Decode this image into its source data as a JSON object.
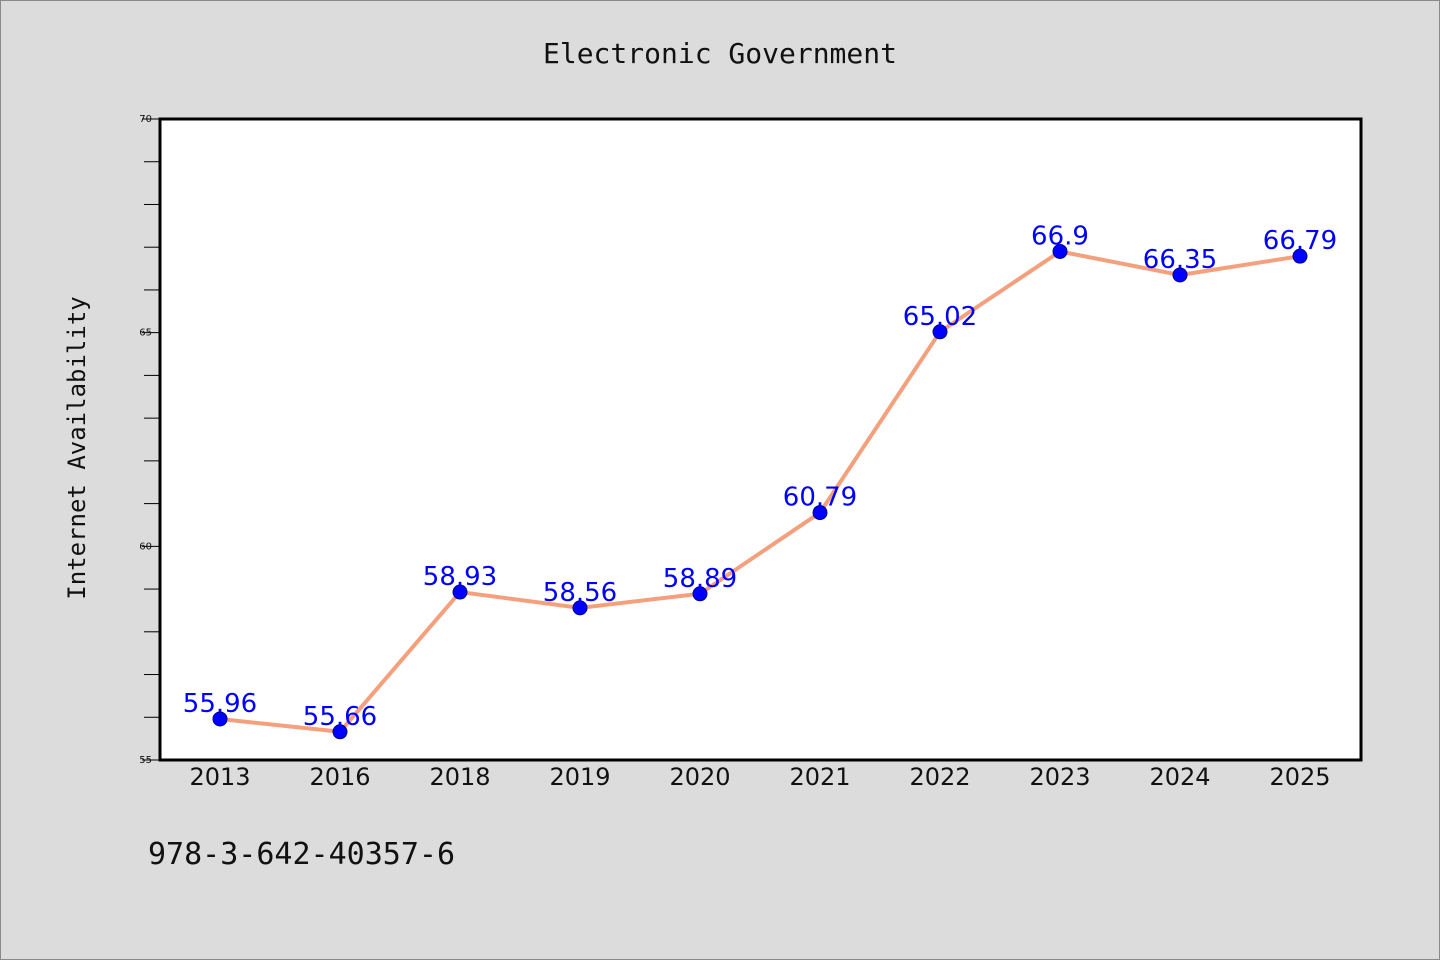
{
  "chart_data": {
    "type": "line",
    "title": "Electronic Government",
    "xlabel": "",
    "ylabel": "Internet Availability",
    "categories": [
      "2013",
      "2016",
      "2018",
      "2019",
      "2020",
      "2021",
      "2022",
      "2023",
      "2024",
      "2025"
    ],
    "series": [
      {
        "values": [
          55.96,
          55.66,
          58.93,
          58.56,
          58.89,
          60.79,
          65.02,
          66.9,
          66.35,
          66.79
        ],
        "labels": [
          "55.96",
          "55.66",
          "58.93",
          "58.56",
          "58.89",
          "60.79",
          "65.02",
          "66.9",
          "66.35",
          "66.79"
        ],
        "line_color": "#f4a07c",
        "marker_color": "#0000ff"
      }
    ],
    "ylim": [
      55,
      70
    ],
    "yticks": [
      "55",
      "60",
      "65",
      "70"
    ],
    "grid": false,
    "legend": "none"
  },
  "footer": {
    "isbn": "978-3-642-40357-6"
  }
}
